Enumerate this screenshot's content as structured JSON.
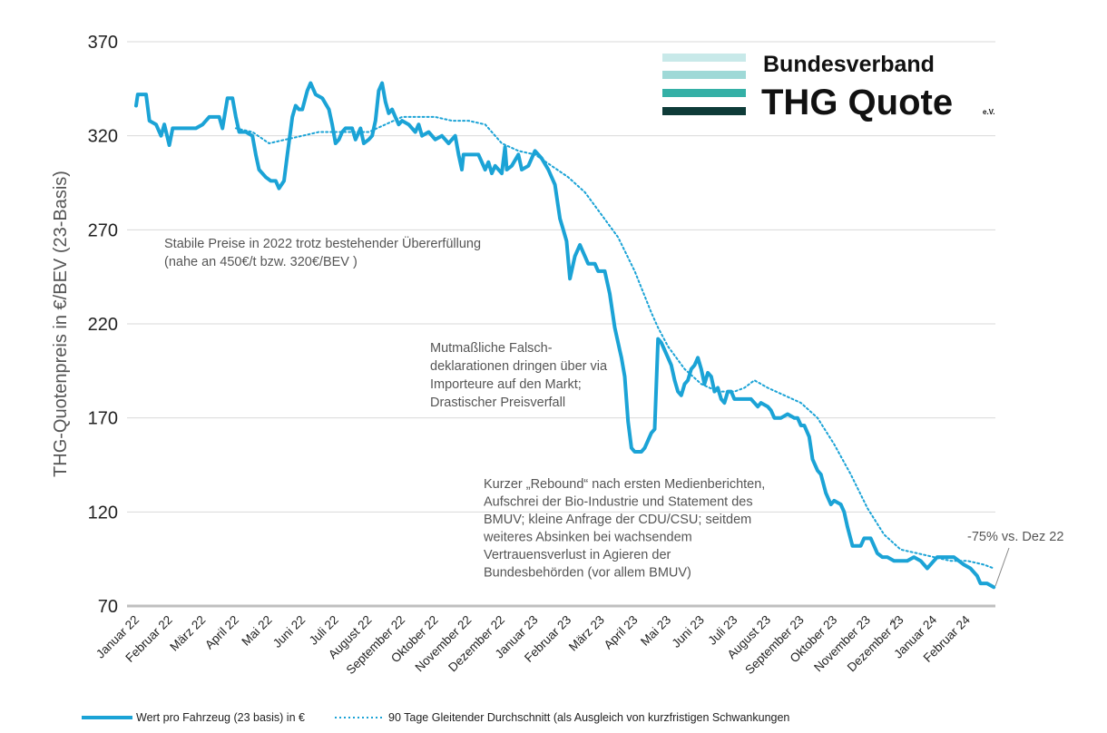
{
  "chart_data": {
    "type": "line",
    "ylabel": "THG-Quotenpreis in €/BEV (23-Basis)",
    "ylim": [
      70,
      370
    ],
    "yticks": [
      70,
      120,
      170,
      220,
      270,
      320,
      370
    ],
    "grid": true,
    "xlabels": [
      "Januar 22",
      "Februar 22",
      "März 22",
      "April 22",
      "Mai 22",
      "Juni 22",
      "Juli 22",
      "August 22",
      "September 22",
      "Oktober 22",
      "November 22",
      "Dezember 22",
      "Januar 23",
      "Februar 23",
      "März 23",
      "April 23",
      "Mai 23",
      "Juni 23",
      "Juli 23",
      "August 23",
      "September 23",
      "Oktober 23",
      "November 23",
      "Dezember 23",
      "Januar 24",
      "Februar 24"
    ],
    "series": [
      {
        "name": "Wert pro Fahrzeug (23 basis) in €",
        "style": "solid",
        "color": "#1ba3d6",
        "points": [
          [
            0.0,
            336
          ],
          [
            0.05,
            342
          ],
          [
            0.3,
            342
          ],
          [
            0.4,
            328
          ],
          [
            0.6,
            326
          ],
          [
            0.75,
            320
          ],
          [
            0.85,
            326
          ],
          [
            1.0,
            315
          ],
          [
            1.1,
            324
          ],
          [
            1.4,
            324
          ],
          [
            1.5,
            324
          ],
          [
            1.8,
            324
          ],
          [
            2.0,
            326
          ],
          [
            2.2,
            330
          ],
          [
            2.5,
            330
          ],
          [
            2.6,
            324
          ],
          [
            2.75,
            340
          ],
          [
            2.9,
            340
          ],
          [
            3.0,
            330
          ],
          [
            3.1,
            322
          ],
          [
            3.3,
            322
          ],
          [
            3.5,
            320
          ],
          [
            3.6,
            310
          ],
          [
            3.7,
            302
          ],
          [
            3.9,
            298
          ],
          [
            4.05,
            296
          ],
          [
            4.2,
            296
          ],
          [
            4.3,
            292
          ],
          [
            4.45,
            296
          ],
          [
            4.55,
            310
          ],
          [
            4.7,
            330
          ],
          [
            4.8,
            336
          ],
          [
            4.9,
            334
          ],
          [
            5.0,
            334
          ],
          [
            5.15,
            344
          ],
          [
            5.25,
            348
          ],
          [
            5.4,
            342
          ],
          [
            5.6,
            340
          ],
          [
            5.8,
            334
          ],
          [
            5.9,
            326
          ],
          [
            6.0,
            316
          ],
          [
            6.1,
            318
          ],
          [
            6.2,
            322
          ],
          [
            6.3,
            324
          ],
          [
            6.5,
            324
          ],
          [
            6.6,
            318
          ],
          [
            6.75,
            324
          ],
          [
            6.85,
            316
          ],
          [
            7.0,
            318
          ],
          [
            7.1,
            320
          ],
          [
            7.2,
            328
          ],
          [
            7.3,
            344
          ],
          [
            7.4,
            348
          ],
          [
            7.5,
            338
          ],
          [
            7.6,
            332
          ],
          [
            7.7,
            334
          ],
          [
            7.8,
            330
          ],
          [
            7.9,
            326
          ],
          [
            8.0,
            328
          ],
          [
            8.2,
            326
          ],
          [
            8.4,
            322
          ],
          [
            8.5,
            326
          ],
          [
            8.6,
            320
          ],
          [
            8.8,
            322
          ],
          [
            9.0,
            318
          ],
          [
            9.2,
            320
          ],
          [
            9.4,
            316
          ],
          [
            9.6,
            320
          ],
          [
            9.7,
            310
          ],
          [
            9.8,
            302
          ],
          [
            9.85,
            310
          ],
          [
            10.0,
            310
          ],
          [
            10.3,
            310
          ],
          [
            10.5,
            302
          ],
          [
            10.6,
            306
          ],
          [
            10.7,
            300
          ],
          [
            10.8,
            304
          ],
          [
            11.0,
            300
          ],
          [
            11.1,
            314
          ],
          [
            11.15,
            302
          ],
          [
            11.3,
            304
          ],
          [
            11.5,
            310
          ],
          [
            11.6,
            302
          ],
          [
            11.8,
            304
          ],
          [
            12.0,
            312
          ],
          [
            12.2,
            308
          ],
          [
            12.4,
            302
          ],
          [
            12.6,
            294
          ],
          [
            12.75,
            276
          ],
          [
            12.85,
            270
          ],
          [
            12.95,
            264
          ],
          [
            13.05,
            244
          ],
          [
            13.2,
            256
          ],
          [
            13.35,
            262
          ],
          [
            13.5,
            256
          ],
          [
            13.6,
            252
          ],
          [
            13.8,
            252
          ],
          [
            13.9,
            248
          ],
          [
            14.1,
            248
          ],
          [
            14.25,
            236
          ],
          [
            14.4,
            218
          ],
          [
            14.55,
            206
          ],
          [
            14.6,
            202
          ],
          [
            14.7,
            192
          ],
          [
            14.8,
            168
          ],
          [
            14.9,
            154
          ],
          [
            15.0,
            152
          ],
          [
            15.2,
            152
          ],
          [
            15.3,
            154
          ],
          [
            15.4,
            158
          ],
          [
            15.5,
            162
          ],
          [
            15.6,
            164
          ],
          [
            15.7,
            212
          ],
          [
            15.8,
            210
          ],
          [
            15.9,
            206
          ],
          [
            16.0,
            202
          ],
          [
            16.1,
            198
          ],
          [
            16.2,
            190
          ],
          [
            16.3,
            184
          ],
          [
            16.4,
            182
          ],
          [
            16.5,
            188
          ],
          [
            16.6,
            190
          ],
          [
            16.7,
            196
          ],
          [
            16.8,
            198
          ],
          [
            16.9,
            202
          ],
          [
            17.0,
            196
          ],
          [
            17.1,
            188
          ],
          [
            17.2,
            194
          ],
          [
            17.3,
            192
          ],
          [
            17.4,
            184
          ],
          [
            17.5,
            186
          ],
          [
            17.6,
            180
          ],
          [
            17.7,
            178
          ],
          [
            17.8,
            184
          ],
          [
            17.9,
            184
          ],
          [
            18.0,
            180
          ],
          [
            18.5,
            180
          ],
          [
            18.7,
            176
          ],
          [
            18.8,
            178
          ],
          [
            19.0,
            176
          ],
          [
            19.1,
            174
          ],
          [
            19.2,
            170
          ],
          [
            19.4,
            170
          ],
          [
            19.6,
            172
          ],
          [
            19.8,
            170
          ],
          [
            19.9,
            170
          ],
          [
            20.0,
            166
          ],
          [
            20.1,
            166
          ],
          [
            20.25,
            160
          ],
          [
            20.35,
            148
          ],
          [
            20.5,
            142
          ],
          [
            20.6,
            140
          ],
          [
            20.75,
            130
          ],
          [
            20.9,
            124
          ],
          [
            21.0,
            126
          ],
          [
            21.2,
            124
          ],
          [
            21.3,
            120
          ],
          [
            21.4,
            112
          ],
          [
            21.55,
            102
          ],
          [
            21.8,
            102
          ],
          [
            21.9,
            106
          ],
          [
            22.1,
            106
          ],
          [
            22.2,
            102
          ],
          [
            22.3,
            98
          ],
          [
            22.45,
            96
          ],
          [
            22.6,
            96
          ],
          [
            22.8,
            94
          ],
          [
            23.0,
            94
          ],
          [
            23.2,
            94
          ],
          [
            23.4,
            96
          ],
          [
            23.6,
            94
          ],
          [
            23.8,
            90
          ],
          [
            24.0,
            94
          ],
          [
            24.1,
            96
          ],
          [
            24.6,
            96
          ],
          [
            24.9,
            92
          ],
          [
            25.1,
            90
          ],
          [
            25.3,
            86
          ],
          [
            25.4,
            82
          ],
          [
            25.6,
            82
          ],
          [
            25.8,
            80
          ]
        ]
      },
      {
        "name": "90 Tage Gleitender Durchschnitt (als Ausgleich von kurzfristigen Schwankungen",
        "style": "dotted",
        "color": "#1ba3d6",
        "points": [
          [
            3.0,
            324
          ],
          [
            3.5,
            322
          ],
          [
            4.0,
            316
          ],
          [
            4.5,
            318
          ],
          [
            5.0,
            320
          ],
          [
            5.5,
            322
          ],
          [
            6.0,
            322
          ],
          [
            6.5,
            322
          ],
          [
            7.0,
            322
          ],
          [
            7.5,
            326
          ],
          [
            8.0,
            330
          ],
          [
            8.5,
            330
          ],
          [
            9.0,
            330
          ],
          [
            9.5,
            328
          ],
          [
            10.0,
            328
          ],
          [
            10.5,
            326
          ],
          [
            11.0,
            316
          ],
          [
            11.5,
            312
          ],
          [
            12.0,
            310
          ],
          [
            12.5,
            304
          ],
          [
            13.0,
            298
          ],
          [
            13.5,
            290
          ],
          [
            14.0,
            278
          ],
          [
            14.5,
            266
          ],
          [
            15.0,
            248
          ],
          [
            15.5,
            226
          ],
          [
            15.7,
            218
          ],
          [
            16.0,
            208
          ],
          [
            16.5,
            196
          ],
          [
            17.0,
            188
          ],
          [
            17.5,
            184
          ],
          [
            18.0,
            184
          ],
          [
            18.3,
            186
          ],
          [
            18.6,
            190
          ],
          [
            19.0,
            186
          ],
          [
            19.5,
            182
          ],
          [
            20.0,
            178
          ],
          [
            20.5,
            170
          ],
          [
            21.0,
            156
          ],
          [
            21.5,
            140
          ],
          [
            22.0,
            122
          ],
          [
            22.5,
            108
          ],
          [
            23.0,
            100
          ],
          [
            23.5,
            98
          ],
          [
            24.0,
            96
          ],
          [
            24.5,
            94
          ],
          [
            25.0,
            94
          ],
          [
            25.5,
            92
          ],
          [
            25.8,
            90
          ]
        ]
      }
    ],
    "annotations": [
      {
        "lines": [
          "Stabile Preise in 2022 trotz bestehender Übererfüllung",
          "(nahe an 450€/t bzw. 320€/BEV )"
        ]
      },
      {
        "lines": [
          "Mutmaßliche Falsch-",
          "deklarationen dringen über via",
          "Importeure auf den Markt;",
          "Drastischer Preisverfall"
        ]
      },
      {
        "lines": [
          "Kurzer „Rebound“ nach ersten Medienberichten,",
          "Aufschrei der Bio-Industrie und Statement des",
          "BMUV; kleine Anfrage der CDU/CSU; seitdem",
          "weiteres Absinken bei wachsendem",
          "Vertrauensverlust in Agieren der",
          "Bundesbehörden (vor allem BMUV)"
        ]
      },
      {
        "lines": [
          "-75% vs. Dez 22"
        ]
      }
    ],
    "asterisk": "*"
  },
  "logo": {
    "line1": "Bundesverband",
    "line2": "THG Quote",
    "suffix": "e.V.",
    "stripe_colors": [
      "#c8e9e9",
      "#9fd9d7",
      "#34b0a6",
      "#0e3b38"
    ]
  },
  "legend": {
    "solid_label": "Wert pro Fahrzeug (23 basis) in €",
    "dotted_label": "90 Tage Gleitender Durchschnitt (als Ausgleich von kurzfristigen Schwankungen"
  },
  "colors": {
    "line": "#1ba3d6",
    "grid": "#d9d9d9",
    "axis": "#bfbfbf",
    "text": "#222222",
    "annotation": "#555555"
  }
}
